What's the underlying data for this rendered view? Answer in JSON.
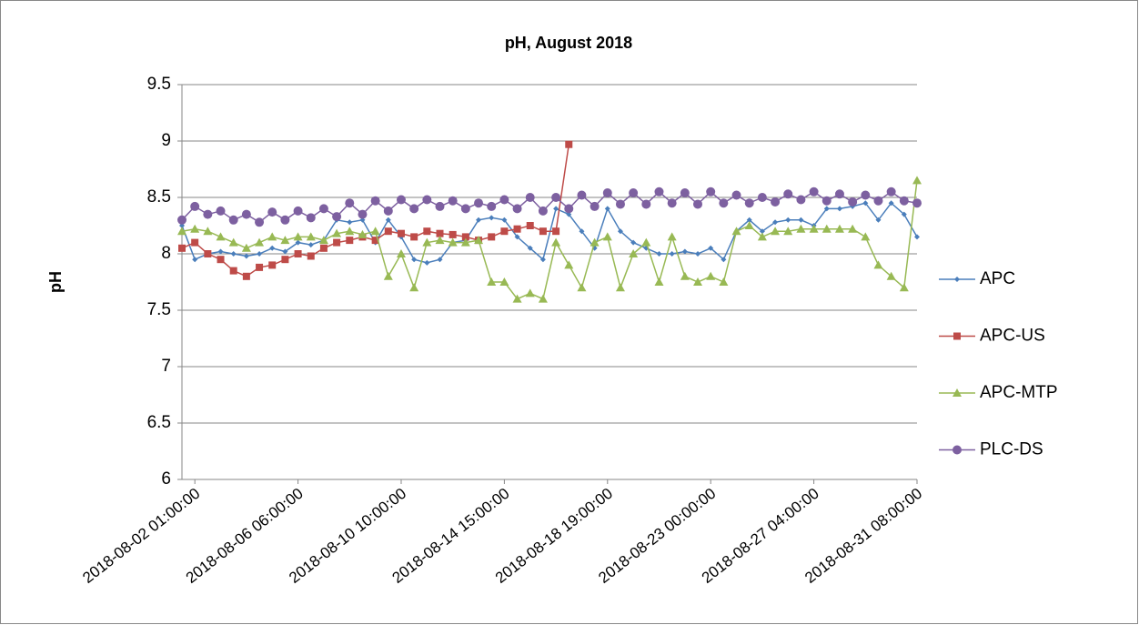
{
  "chart_data": {
    "type": "line",
    "title": "pH, August 2018",
    "y_label": "pH",
    "categories": [
      null,
      "2018-08-02 01:00:00",
      null,
      null,
      null,
      null,
      null,
      null,
      null,
      "2018-08-06 06:00:00",
      null,
      null,
      null,
      null,
      null,
      null,
      null,
      "2018-08-10 10:00:00",
      null,
      null,
      null,
      null,
      null,
      null,
      null,
      "2018-08-14 15:00:00",
      null,
      null,
      null,
      null,
      null,
      null,
      null,
      "2018-08-18 19:00:00",
      null,
      null,
      null,
      null,
      null,
      null,
      null,
      "2018-08-23 00:00:00",
      null,
      null,
      null,
      null,
      null,
      null,
      null,
      "2018-08-27 04:00:00",
      null,
      null,
      null,
      null,
      null,
      null,
      null,
      "2018-08-31 08:00:00"
    ],
    "series": [
      {
        "name": "APC",
        "color": "#4a7ebb",
        "marker": "diamond",
        "values": [
          8.25,
          7.95,
          8.0,
          8.02,
          8.0,
          7.98,
          8.0,
          8.05,
          8.02,
          8.1,
          8.08,
          8.12,
          8.3,
          8.28,
          8.3,
          8.1,
          8.3,
          8.15,
          7.95,
          7.92,
          7.95,
          8.1,
          8.12,
          8.3,
          8.32,
          8.3,
          8.15,
          8.05,
          7.95,
          8.4,
          8.35,
          8.2,
          8.05,
          8.4,
          8.2,
          8.1,
          8.05,
          8.0,
          8.0,
          8.02,
          8.0,
          8.05,
          7.95,
          8.2,
          8.3,
          8.2,
          8.28,
          8.3,
          8.3,
          8.25,
          8.4,
          8.4,
          8.42,
          8.45,
          8.3,
          8.45,
          8.35,
          8.15
        ]
      },
      {
        "name": "APC-US",
        "color": "#be4b48",
        "marker": "square",
        "values": [
          8.05,
          8.1,
          8.0,
          7.95,
          7.85,
          7.8,
          7.88,
          7.9,
          7.95,
          8.0,
          7.98,
          8.05,
          8.1,
          8.12,
          8.15,
          8.12,
          8.2,
          8.18,
          8.15,
          8.2,
          8.18,
          8.17,
          8.15,
          8.12,
          8.15,
          8.2,
          8.22,
          8.25,
          8.2,
          8.2,
          8.97,
          null,
          null,
          null,
          null,
          null,
          null,
          null,
          null,
          null,
          null,
          null,
          null,
          null,
          null,
          null,
          null,
          null,
          null,
          null,
          null,
          null,
          null,
          null,
          null,
          null,
          null,
          null
        ]
      },
      {
        "name": "APC-MTP",
        "color": "#98b954",
        "marker": "triangle",
        "values": [
          8.2,
          8.22,
          8.2,
          8.15,
          8.1,
          8.05,
          8.1,
          8.15,
          8.12,
          8.15,
          8.15,
          8.12,
          8.18,
          8.2,
          8.17,
          8.2,
          7.8,
          8.0,
          7.7,
          8.1,
          8.12,
          8.1,
          8.1,
          8.12,
          7.75,
          7.75,
          7.6,
          7.65,
          7.6,
          8.1,
          7.9,
          7.7,
          8.1,
          8.15,
          7.7,
          8.0,
          8.1,
          7.75,
          8.15,
          7.8,
          7.75,
          7.8,
          7.75,
          8.2,
          8.25,
          8.15,
          8.2,
          8.2,
          8.22,
          8.22,
          8.22,
          8.22,
          8.22,
          8.15,
          7.9,
          7.8,
          7.7,
          8.65
        ]
      },
      {
        "name": "PLC-DS",
        "color": "#7d60a0",
        "marker": "circle",
        "values": [
          8.3,
          8.42,
          8.35,
          8.38,
          8.3,
          8.35,
          8.28,
          8.37,
          8.3,
          8.38,
          8.32,
          8.4,
          8.33,
          8.45,
          8.35,
          8.47,
          8.38,
          8.48,
          8.4,
          8.48,
          8.42,
          8.47,
          8.4,
          8.45,
          8.42,
          8.48,
          8.4,
          8.5,
          8.38,
          8.5,
          8.4,
          8.52,
          8.42,
          8.54,
          8.44,
          8.54,
          8.44,
          8.55,
          8.45,
          8.54,
          8.44,
          8.55,
          8.45,
          8.52,
          8.45,
          8.5,
          8.46,
          8.53,
          8.48,
          8.55,
          8.47,
          8.53,
          8.46,
          8.52,
          8.47,
          8.55,
          8.47,
          8.45
        ]
      }
    ],
    "ylim": [
      6,
      9.5
    ],
    "yticks": [
      6,
      6.5,
      7,
      7.5,
      8,
      8.5,
      9,
      9.5
    ],
    "grid": true,
    "legend": "right"
  }
}
